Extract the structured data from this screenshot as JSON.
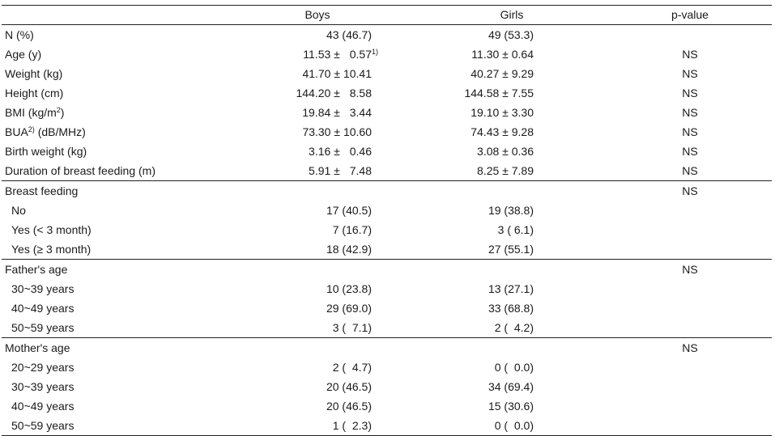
{
  "columns": [
    "",
    "Boys",
    "Girls",
    "p-value"
  ],
  "rows": [
    {
      "label": "N (%)",
      "boys": "43 (46.7)",
      "girls": "49 (53.3)",
      "p": ""
    },
    {
      "label": "Age (y)",
      "boys_mean": "11.53",
      "boys_sd": "0.57",
      "boys_note": "1)",
      "girls_mean": "11.30",
      "girls_sd": "0.64",
      "p": "NS"
    },
    {
      "label": "Weight (kg)",
      "boys_mean": "41.70",
      "boys_sd": "10.41",
      "girls_mean": "40.27",
      "girls_sd": "9.29",
      "p": "NS"
    },
    {
      "label": "Height (cm)",
      "boys_mean": "144.20",
      "boys_sd": "8.58",
      "girls_mean": "144.58",
      "girls_sd": "7.55",
      "p": "NS"
    },
    {
      "label_main": "BMI (kg/m",
      "label_sup": "2",
      "label_end": ")",
      "boys_mean": "19.84",
      "boys_sd": "3.44",
      "girls_mean": "19.10",
      "girls_sd": "3.30",
      "p": "NS"
    },
    {
      "label_main": "BUA",
      "label_sup": "2)",
      "label_end": " (dB/MHz)",
      "boys_mean": "73.30",
      "boys_sd": "10.60",
      "girls_mean": "74.43",
      "girls_sd": "9.28",
      "p": "NS"
    },
    {
      "label": "Birth weight (kg)",
      "boys_mean": "3.16",
      "boys_sd": "0.46",
      "girls_mean": "3.08",
      "girls_sd": "0.36",
      "p": "NS"
    },
    {
      "label": "Duration of breast feeding (m)",
      "boys_mean": "5.91",
      "boys_sd": "7.48",
      "girls_mean": "8.25",
      "girls_sd": "7.89",
      "p": "NS"
    },
    {
      "label": "Breast feeding",
      "boys": "",
      "girls": "",
      "p": "NS"
    },
    {
      "label": "No",
      "boys": "17 (40.5)",
      "girls": "19 (38.8)",
      "p": ""
    },
    {
      "label": "Yes (< 3 month)",
      "boys": "7 (16.7)",
      "girls": "3 (  6.1)",
      "p": ""
    },
    {
      "label": "Yes (≥ 3 month)",
      "boys": "18 (42.9)",
      "girls": "27 (55.1)",
      "p": ""
    },
    {
      "label": "Father's age",
      "boys": "",
      "girls": "",
      "p": "NS"
    },
    {
      "label": "30~39 years",
      "boys": "10 (23.8)",
      "girls": "13 (27.1)",
      "p": ""
    },
    {
      "label": "40~49 years",
      "boys": "29 (69.0)",
      "girls": "33 (68.8)",
      "p": ""
    },
    {
      "label": "50~59 years",
      "boys": "3 (  7.1)",
      "girls": "2 (  4.2)",
      "p": ""
    },
    {
      "label": "Mother's age",
      "boys": "",
      "girls": "",
      "p": "NS"
    },
    {
      "label": "20~29 years",
      "boys": "2 (  4.7)",
      "girls": "0 (  0.0)",
      "p": ""
    },
    {
      "label": "30~39 years",
      "boys": "20 (46.5)",
      "girls": "34 (69.4)",
      "p": ""
    },
    {
      "label": "40~49 years",
      "boys": "20 (46.5)",
      "girls": "15 (30.6)",
      "p": ""
    },
    {
      "label": "50~59 years",
      "boys": "1 (  2.3)",
      "girls": "0 (  0.0)",
      "p": ""
    }
  ],
  "pm": "±"
}
